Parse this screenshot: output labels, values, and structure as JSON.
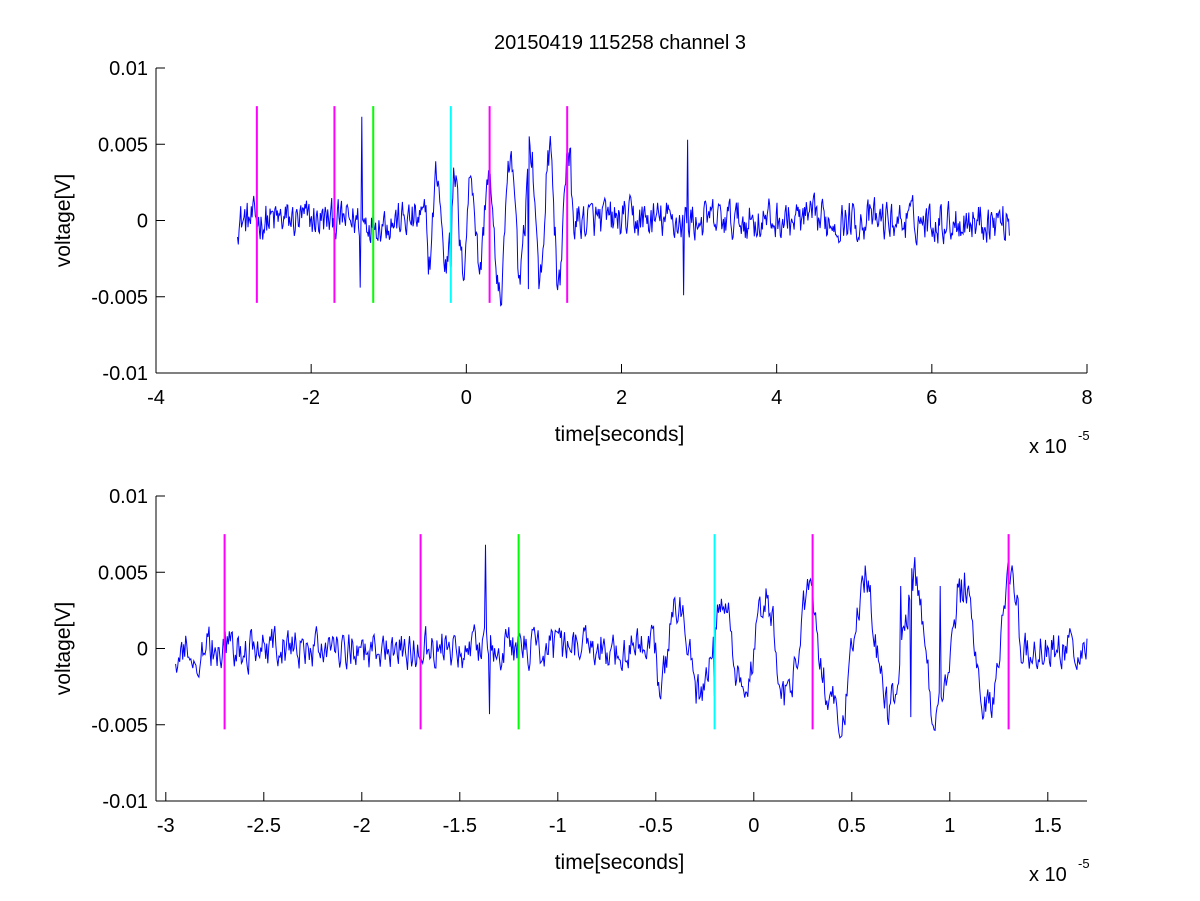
{
  "figure": {
    "title": "20150419 115258 channel 3"
  },
  "chart_data": [
    {
      "type": "line",
      "title": "20150419 115258 channel 3",
      "xlabel": "time[seconds]",
      "ylabel": "voltage[V]",
      "x_multiplier": {
        "base": "x 10",
        "exponent": "-5"
      },
      "xlim": [
        -4,
        8
      ],
      "ylim": [
        -0.01,
        0.01
      ],
      "x_ticks": [
        -4,
        -2,
        0,
        2,
        4,
        6,
        8
      ],
      "x_tick_labels": [
        "-4",
        "-2",
        "0",
        "2",
        "4",
        "6",
        "8"
      ],
      "y_ticks": [
        -0.01,
        -0.005,
        0,
        0.005,
        0.01
      ],
      "y_tick_labels": [
        "-0.01",
        "-0.005",
        "0",
        "0.005",
        "0.01"
      ],
      "grid": false,
      "series": [
        {
          "color": "#0000ff",
          "x_range": [
            -2.95,
            7.0
          ],
          "approx_amplitude": 0.0015,
          "spikes": [
            [
              -1.35,
              0.0068
            ],
            [
              -1.37,
              -0.0044
            ],
            [
              -0.2,
              -0.003
            ],
            [
              0.8,
              -0.0045
            ],
            [
              0.85,
              0.0045
            ],
            [
              1.05,
              0.0046
            ],
            [
              2.85,
              0.0053
            ],
            [
              2.8,
              -0.0049
            ]
          ]
        }
      ],
      "markers": [
        {
          "x": -2.7,
          "color": "#ff00ff",
          "y_range": [
            -0.0054,
            0.0075
          ]
        },
        {
          "x": -1.7,
          "color": "#ff00ff",
          "y_range": [
            -0.0054,
            0.0075
          ]
        },
        {
          "x": -1.2,
          "color": "#00ff00",
          "y_range": [
            -0.0054,
            0.0075
          ]
        },
        {
          "x": -0.2,
          "color": "#00ffff",
          "y_range": [
            -0.0054,
            0.0075
          ]
        },
        {
          "x": 0.3,
          "color": "#ff00ff",
          "y_range": [
            -0.0054,
            0.0075
          ]
        },
        {
          "x": 1.3,
          "color": "#ff00ff",
          "y_range": [
            -0.0054,
            0.0075
          ]
        }
      ]
    },
    {
      "type": "line",
      "title": "",
      "xlabel": "time[seconds]",
      "ylabel": "voltage[V]",
      "x_multiplier": {
        "base": "x 10",
        "exponent": "-5"
      },
      "xlim": [
        -3.05,
        1.7
      ],
      "ylim": [
        -0.01,
        0.01
      ],
      "x_ticks": [
        -3,
        -2.5,
        -2,
        -1.5,
        -1,
        -0.5,
        0,
        0.5,
        1,
        1.5
      ],
      "x_tick_labels": [
        "-3",
        "-2.5",
        "-2",
        "-1.5",
        "-1",
        "-0.5",
        "0",
        "0.5",
        "1",
        "1.5"
      ],
      "y_ticks": [
        -0.01,
        -0.005,
        0,
        0.005,
        0.01
      ],
      "y_tick_labels": [
        "-0.01",
        "-0.005",
        "0",
        "0.005",
        "0.01"
      ],
      "grid": false,
      "series": [
        {
          "color": "#0000ff",
          "x_range": [
            -2.95,
            1.7
          ],
          "approx_amplitude": 0.0015,
          "spikes": [
            [
              -1.37,
              0.0068
            ],
            [
              -1.35,
              -0.0043
            ],
            [
              -0.2,
              -0.0031
            ],
            [
              0.8,
              -0.0045
            ],
            [
              1.05,
              0.0046
            ],
            [
              0.75,
              0.0041
            ],
            [
              0.95,
              0.0041
            ]
          ]
        }
      ],
      "markers": [
        {
          "x": -2.7,
          "color": "#ff00ff",
          "y_range": [
            -0.0053,
            0.0075
          ]
        },
        {
          "x": -1.7,
          "color": "#ff00ff",
          "y_range": [
            -0.0053,
            0.0075
          ]
        },
        {
          "x": -1.2,
          "color": "#00ff00",
          "y_range": [
            -0.0053,
            0.0075
          ]
        },
        {
          "x": -0.2,
          "color": "#00ffff",
          "y_range": [
            -0.0053,
            0.0075
          ]
        },
        {
          "x": 0.3,
          "color": "#ff00ff",
          "y_range": [
            -0.0053,
            0.0075
          ]
        },
        {
          "x": 1.3,
          "color": "#ff00ff",
          "y_range": [
            -0.0053,
            0.0075
          ]
        }
      ]
    }
  ]
}
